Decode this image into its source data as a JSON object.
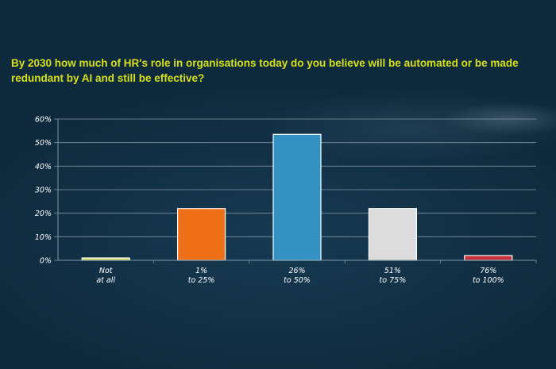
{
  "question": "By 2030 how much of HR's role in organisations today do you believe will be automated or be made redundant by AI and still be effective?",
  "chart_data": {
    "type": "bar",
    "categories": [
      [
        "Not",
        "at all"
      ],
      [
        "1%",
        "to 25%"
      ],
      [
        "26%",
        "to 50%"
      ],
      [
        "51%",
        "to 75%"
      ],
      [
        "76%",
        "to 100%"
      ]
    ],
    "values": [
      1,
      22,
      53.5,
      22,
      2
    ],
    "bar_colors": [
      "#d9e35a",
      "#f07018",
      "#3391c4",
      "#dcdcdc",
      "#c8303a"
    ],
    "ylim": [
      0,
      60
    ],
    "yticks": [
      0,
      10,
      20,
      30,
      40,
      50,
      60
    ],
    "ytick_labels": [
      "0%",
      "10%",
      "20%",
      "30%",
      "40%",
      "50%",
      "60%"
    ],
    "grid": true
  },
  "colors": {
    "background": "#0f2a3d",
    "title": "#d6e01f",
    "gridline": "#7f95a3",
    "text": "#ffffff"
  }
}
